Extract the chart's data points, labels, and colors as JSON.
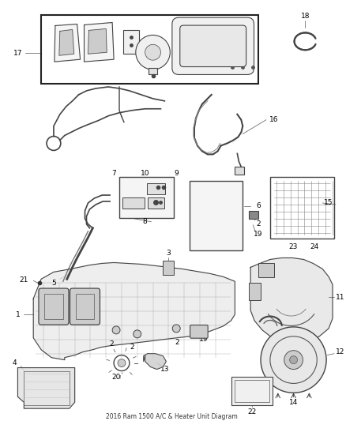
{
  "title": "2016 Ram 1500 A/C & Heater Unit Diagram",
  "bg_color": "#ffffff",
  "lc": "#444444",
  "tc": "#000000",
  "fig_w": 4.38,
  "fig_h": 5.33,
  "dpi": 100
}
